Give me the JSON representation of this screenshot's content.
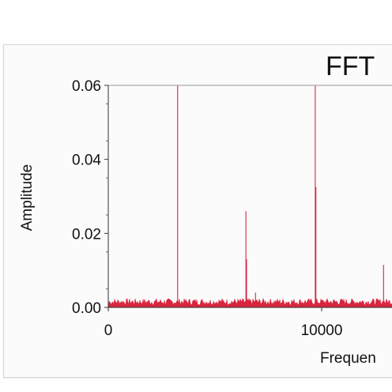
{
  "chart_data": {
    "type": "line",
    "title": "FFT",
    "xlabel": "Frequen",
    "ylabel": "Amplitude",
    "xlim": [
      0,
      13000
    ],
    "ylim": [
      0,
      0.06
    ],
    "x_ticks": [
      "0",
      "10000"
    ],
    "y_ticks": [
      "0.00",
      "0.02",
      "0.04",
      "0.06"
    ],
    "grid": false,
    "color": "#d8253f",
    "noise_floor": 0.0015,
    "series": [
      {
        "peaks": [
          {
            "x": 3250,
            "y": 0.06
          },
          {
            "x": 6450,
            "y": 0.026
          },
          {
            "x": 6480,
            "y": 0.013
          },
          {
            "x": 6900,
            "y": 0.004
          },
          {
            "x": 9700,
            "y": 0.06
          },
          {
            "x": 9730,
            "y": 0.0325
          },
          {
            "x": 12900,
            "y": 0.0115
          }
        ]
      }
    ]
  }
}
